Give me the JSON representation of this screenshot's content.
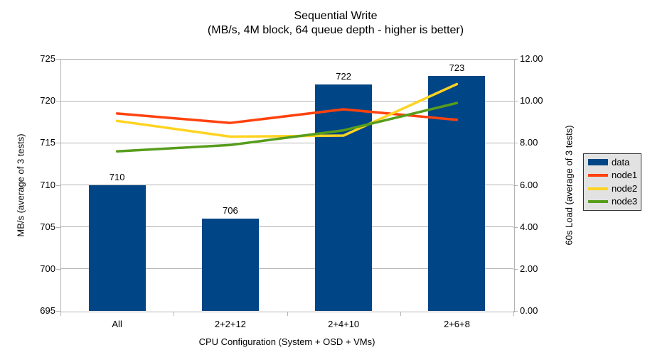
{
  "chart_data": {
    "type": "combo-bar-line",
    "title": "Sequential Write",
    "subtitle": "(MB/s, 4M block, 64 queue depth - higher is better)",
    "categories": [
      "All",
      "2+2+12",
      "2+4+10",
      "2+6+8"
    ],
    "bar_series": {
      "name": "data",
      "axis": "left",
      "color": "#004586",
      "values": [
        710,
        706,
        722,
        723
      ]
    },
    "line_series": [
      {
        "name": "node1",
        "axis": "right",
        "color": "#ff420e",
        "values": [
          9.4,
          8.95,
          9.6,
          9.1
        ]
      },
      {
        "name": "node2",
        "axis": "right",
        "color": "#ffd320",
        "values": [
          9.05,
          8.3,
          8.35,
          10.8
        ]
      },
      {
        "name": "node3",
        "axis": "right",
        "color": "#579d1c",
        "values": [
          7.6,
          7.9,
          8.6,
          9.9
        ]
      }
    ],
    "left_axis": {
      "label": "MB/s (average of 3 tests)",
      "min": 695,
      "max": 725,
      "step": 5,
      "ticks": [
        "725",
        "720",
        "715",
        "710",
        "705",
        "700",
        "695"
      ]
    },
    "right_axis": {
      "label": "60s Load (average of 3 tests)",
      "min": 0,
      "max": 12,
      "step": 2,
      "ticks": [
        "12.00",
        "10.00",
        "8.00",
        "6.00",
        "4.00",
        "2.00",
        "0.00"
      ]
    },
    "x_axis": {
      "label": "CPU Configuration (System + OSD + VMs)"
    },
    "legend": {
      "position": "right",
      "entries": [
        "data",
        "node1",
        "node2",
        "node3"
      ]
    },
    "grid": "horizontal",
    "colors": {
      "grid": "#b3b3b3",
      "background": "#ffffff",
      "text": "#000000",
      "legend_bg": "#e2e2e2",
      "legend_border": "#333333"
    }
  }
}
